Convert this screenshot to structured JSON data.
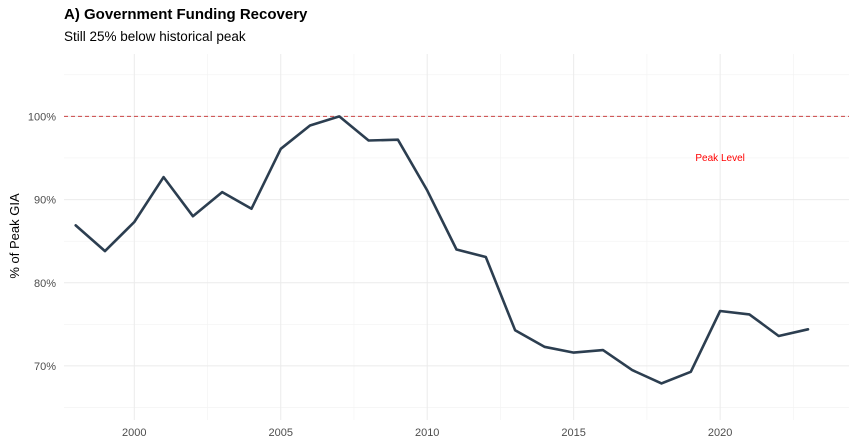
{
  "chart_data": {
    "type": "line",
    "title": "A) Government Funding Recovery",
    "subtitle": "Still 25% below historical peak",
    "xlabel": "",
    "ylabel": "% of Peak GIA",
    "xlim": [
      1997.6,
      2024.4
    ],
    "ylim": [
      63.5,
      107.5
    ],
    "x_ticks": [
      2000,
      2005,
      2010,
      2015,
      2020
    ],
    "y_ticks": [
      70,
      80,
      90,
      100
    ],
    "y_tick_labels": [
      "70%",
      "80%",
      "90%",
      "100%"
    ],
    "grid": true,
    "line_color": "#2c3e50",
    "series": [
      {
        "x": [
          1998,
          1999,
          2000,
          2001,
          2002,
          2003,
          2004,
          2005,
          2006,
          2007,
          2008,
          2009,
          2010,
          2011,
          2012,
          2013,
          2014,
          2015,
          2016,
          2017,
          2018,
          2019,
          2020,
          2021,
          2022,
          2023
        ],
        "values": [
          86.9,
          83.8,
          87.3,
          92.7,
          88.0,
          90.9,
          88.9,
          96.1,
          98.9,
          100.0,
          97.1,
          97.2,
          91.1,
          84.0,
          83.1,
          74.3,
          72.3,
          71.6,
          71.9,
          69.5,
          67.9,
          69.3,
          76.6,
          76.2,
          73.6,
          74.4
        ]
      }
    ],
    "reference_line": {
      "y": 100,
      "color": "#cc4444",
      "style": "dashed"
    },
    "annotation": {
      "text": "Peak Level",
      "x": 2020,
      "y": 95,
      "color": "#ff0000"
    }
  }
}
